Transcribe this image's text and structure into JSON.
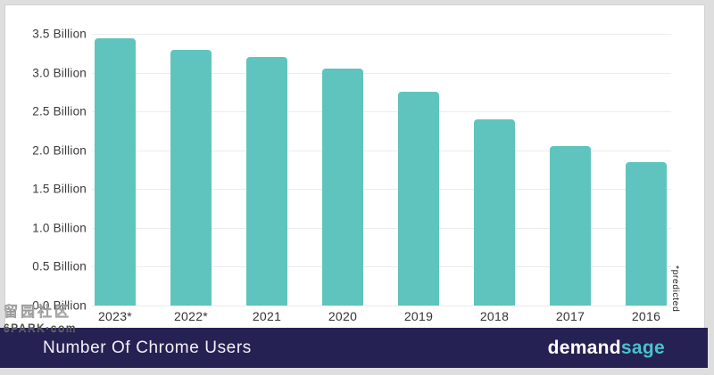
{
  "chart_data": {
    "type": "bar",
    "title": "Number Of Chrome Users",
    "categories": [
      "2023*",
      "2022*",
      "2021",
      "2020",
      "2019",
      "2018",
      "2017",
      "2016"
    ],
    "values": [
      3.45,
      3.3,
      3.2,
      3.05,
      2.75,
      2.4,
      2.05,
      1.85
    ],
    "unit": "Billion",
    "ylim": [
      0,
      3.5
    ],
    "ytick_values": [
      3.5,
      3.0,
      2.5,
      2.0,
      1.5,
      1.0,
      0.5,
      0.0
    ],
    "ytick_labels": [
      "3.5 Billion",
      "3.0 Billion",
      "2.5 Billion",
      "2.0 Billion",
      "1.5 Billion",
      "1.0 Billion",
      "0.5 Billion",
      "0.0 Billion"
    ],
    "annotation": "*predicted",
    "grid": true,
    "legend": false,
    "bar_color": "#5fc4be"
  },
  "footer": {
    "title": "Number Of Chrome Users",
    "brand_demand": "demand",
    "brand_sage": "sage"
  },
  "watermark": {
    "cjk_text": "留园社区",
    "site_text": "6PARK·com"
  },
  "colors": {
    "page_background": "#dedede",
    "card_background": "#ffffff",
    "bar": "#5fc4be",
    "gridline": "#ececec",
    "axis_text": "#3a3a3a",
    "footer_background": "#262153",
    "brand_sage": "#48c3cd"
  }
}
